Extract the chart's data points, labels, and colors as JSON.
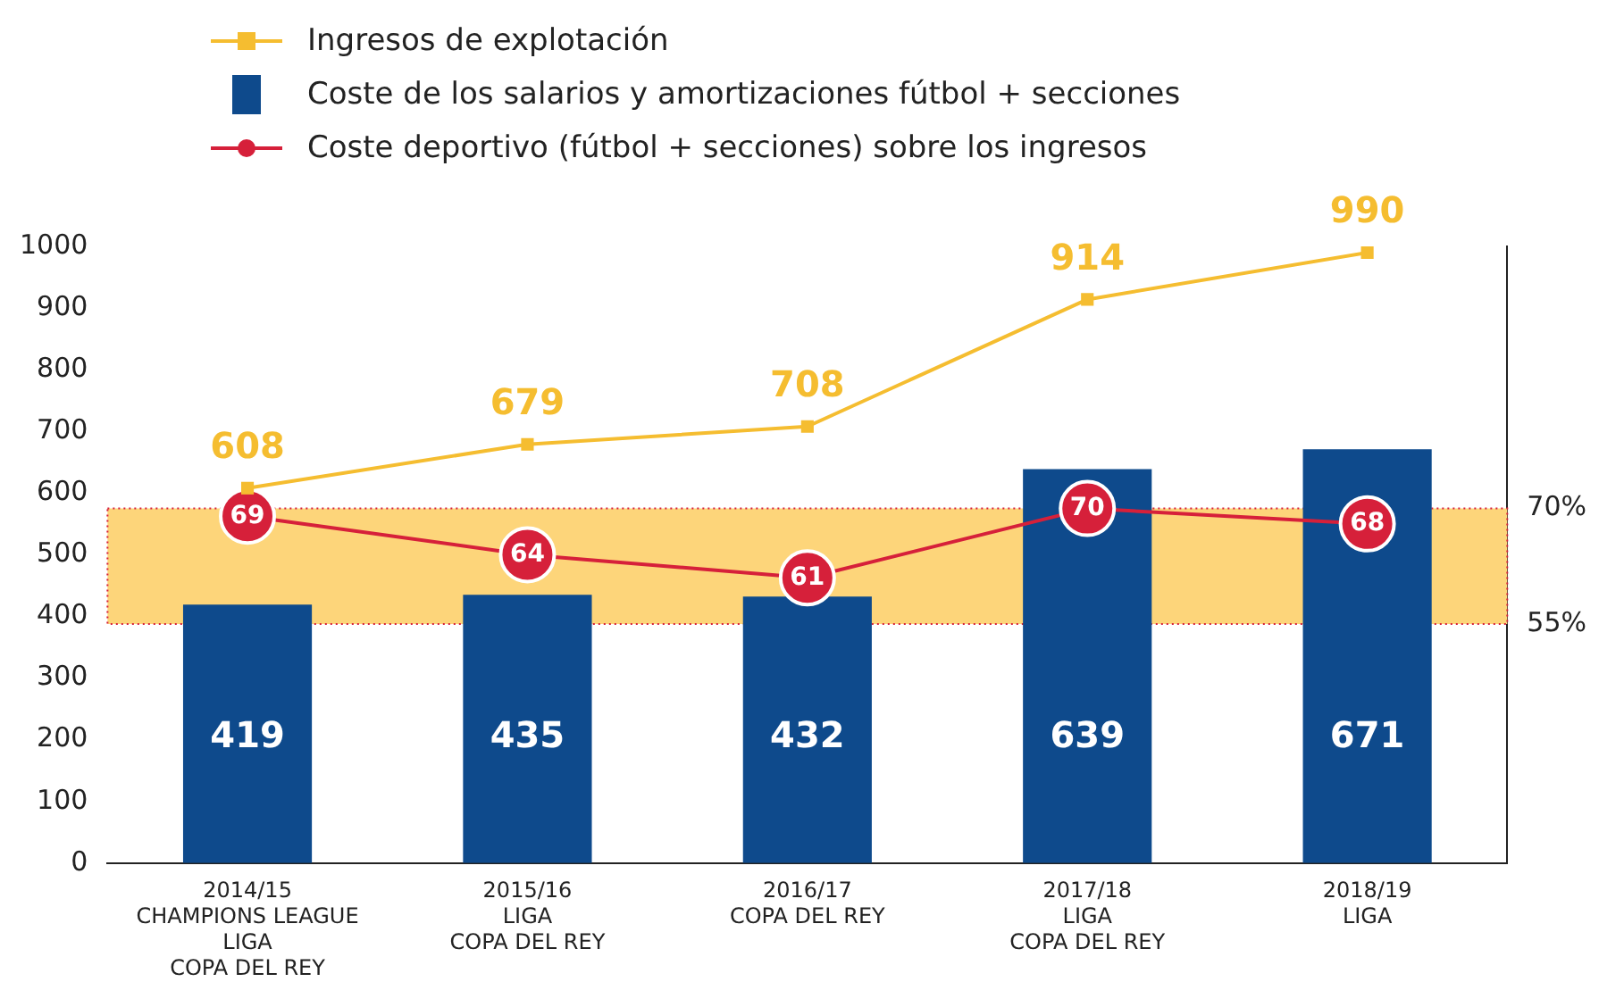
{
  "chart_data": {
    "type": "bar",
    "categories": [
      "2014/15\nCHAMPIONS LEAGUE\nLIGA\nCOPA DEL REY",
      "2015/16\nLIGA\nCOPA DEL REY",
      "2016/17\nCOPA DEL REY",
      "2017/18\nLIGA\nCOPA DEL REY",
      "2018/19\nLIGA"
    ],
    "series": [
      {
        "type": "line",
        "name": "Ingresos de explotación",
        "color": "#f5bd30",
        "marker": "square",
        "values": [
          608,
          679,
          708,
          914,
          990
        ]
      },
      {
        "name": "Coste de los salarios y amortizaciones fútbol + secciones",
        "color": "#0e4a8c",
        "values": [
          419,
          435,
          432,
          639,
          671
        ]
      },
      {
        "type": "line",
        "name": "Coste deportivo (fútbol + secciones) sobre los ingresos",
        "color": "#d6203a",
        "marker": "circle",
        "axis": "y2",
        "values": [
          69,
          64,
          61,
          70,
          68
        ]
      }
    ],
    "ylim": [
      0,
      1000
    ],
    "yticks": [
      0,
      100,
      200,
      300,
      400,
      500,
      600,
      700,
      800,
      900,
      1000
    ],
    "y2lim": [
      24,
      104
    ],
    "y2ticks": [
      {
        "value": 55,
        "label": "55%"
      },
      {
        "value": 70,
        "label": "70%"
      }
    ],
    "bands": [
      {
        "axis": "y2",
        "from": 55,
        "to": 70,
        "color": "#fdd57a"
      }
    ],
    "data_labels": true,
    "grid": false,
    "legend": "top left"
  }
}
